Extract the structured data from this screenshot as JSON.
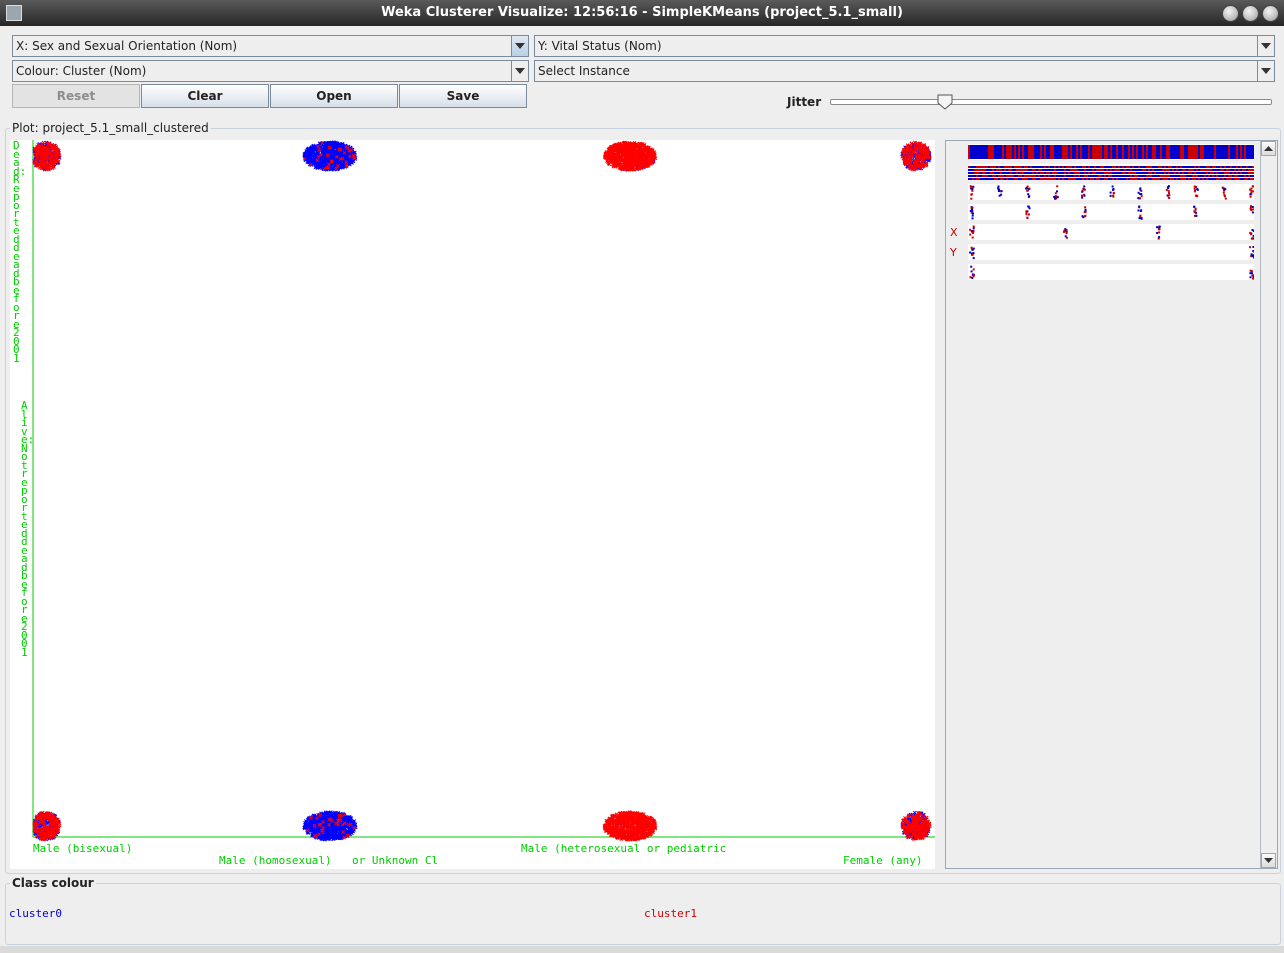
{
  "window": {
    "title": "Weka Clusterer Visualize: 12:56:16 - SimpleKMeans (project_5.1_small)"
  },
  "controls": {
    "x_axis": "X: Sex and Sexual Orientation (Nom)",
    "y_axis": "Y: Vital Status (Nom)",
    "colour": "Colour: Cluster (Nom)",
    "select_instance": "Select Instance",
    "buttons": {
      "reset": "Reset",
      "clear": "Clear",
      "open": "Open",
      "save": "Save"
    },
    "jitter_label": "Jitter",
    "jitter_value": 0.26
  },
  "plot": {
    "legend": "Plot: project_5.1_small_clustered",
    "x_tick_labels": [
      "Male (bisexual)",
      "Male (homosexual)",
      "or Unknown Cl",
      "Male (heterosexual or pediatric",
      "Female (any)"
    ],
    "y_tick_labels": [
      "Dead: Reported dead before 2001",
      "Alive: Not reported dead before 2001"
    ],
    "attribute_markers": {
      "x": "X",
      "y": "Y"
    }
  },
  "chart_data": {
    "type": "scatter",
    "xlabel": "Sex and Sexual Orientation",
    "ylabel": "Vital Status",
    "x_categories": [
      "Male (bisexual)",
      "Male (homosexual)",
      "Male (heterosexual or pediatric) or Unknown",
      "Female (any)"
    ],
    "y_categories": [
      "Alive: Not reported dead before 2001",
      "Dead: Reported dead before 2001"
    ],
    "jitter": true,
    "series": [
      {
        "name": "cluster0",
        "color": "#0000ff",
        "clusters": [
          {
            "x": "Male (bisexual)",
            "y": "Dead: Reported dead before 2001",
            "density": "medium"
          },
          {
            "x": "Male (homosexual)",
            "y": "Dead: Reported dead before 2001",
            "density": "high"
          },
          {
            "x": "Male (heterosexual or pediatric) or Unknown",
            "y": "Dead: Reported dead before 2001",
            "density": "low"
          },
          {
            "x": "Female (any)",
            "y": "Dead: Reported dead before 2001",
            "density": "medium"
          },
          {
            "x": "Male (bisexual)",
            "y": "Alive: Not reported dead before 2001",
            "density": "medium"
          },
          {
            "x": "Male (homosexual)",
            "y": "Alive: Not reported dead before 2001",
            "density": "high"
          },
          {
            "x": "Male (heterosexual or pediatric) or Unknown",
            "y": "Alive: Not reported dead before 2001",
            "density": "low"
          },
          {
            "x": "Female (any)",
            "y": "Alive: Not reported dead before 2001",
            "density": "medium"
          }
        ]
      },
      {
        "name": "cluster1",
        "color": "#ff0000",
        "clusters": [
          {
            "x": "Male (bisexual)",
            "y": "Dead: Reported dead before 2001",
            "density": "medium"
          },
          {
            "x": "Male (homosexual)",
            "y": "Dead: Reported dead before 2001",
            "density": "low"
          },
          {
            "x": "Male (heterosexual or pediatric) or Unknown",
            "y": "Dead: Reported dead before 2001",
            "density": "high"
          },
          {
            "x": "Female (any)",
            "y": "Dead: Reported dead before 2001",
            "density": "medium"
          },
          {
            "x": "Male (bisexual)",
            "y": "Alive: Not reported dead before 2001",
            "density": "medium"
          },
          {
            "x": "Male (homosexual)",
            "y": "Alive: Not reported dead before 2001",
            "density": "low"
          },
          {
            "x": "Male (heterosexual or pediatric) or Unknown",
            "y": "Alive: Not reported dead before 2001",
            "density": "high"
          },
          {
            "x": "Female (any)",
            "y": "Alive: Not reported dead before 2001",
            "density": "medium"
          }
        ]
      }
    ],
    "grid": false
  },
  "class_colour": {
    "legend": "Class colour",
    "items": [
      {
        "label": "cluster0",
        "color": "#0000cc"
      },
      {
        "label": "cluster1",
        "color": "#cc0000"
      }
    ]
  }
}
